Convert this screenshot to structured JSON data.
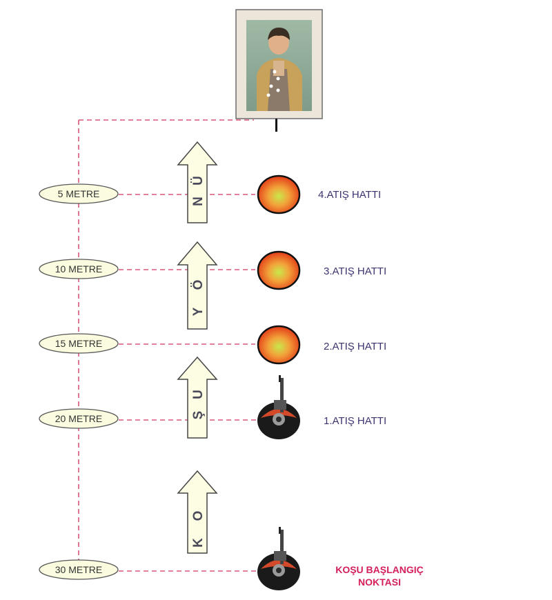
{
  "diagram": {
    "distances": {
      "d5": "5 METRE",
      "d10": "10 METRE",
      "d15": "15 METRE",
      "d20": "20 METRE",
      "d30": "30 METRE"
    },
    "lines": {
      "line4": "4.ATIŞ HATTI",
      "line3": "3.ATIŞ HATTI",
      "line2": "2.ATIŞ HATTI",
      "line1": "1.ATIŞ HATTI"
    },
    "start": {
      "line_a": "KOŞU BAŞLANGIÇ",
      "line_b": "NOKTASI"
    },
    "arrows": {
      "top": [
        "N",
        "Ü"
      ],
      "middle": [
        "Y",
        "Ö"
      ],
      "lower": [
        "Ş",
        "U"
      ],
      "bottom": [
        "K",
        "O"
      ]
    },
    "colors": {
      "dash": "#d9577a",
      "label_fill": "#fbfbdf",
      "arrow_fill": "#fdfde4",
      "line_text": "#3b3470",
      "start_text": "#d41f5a"
    }
  }
}
